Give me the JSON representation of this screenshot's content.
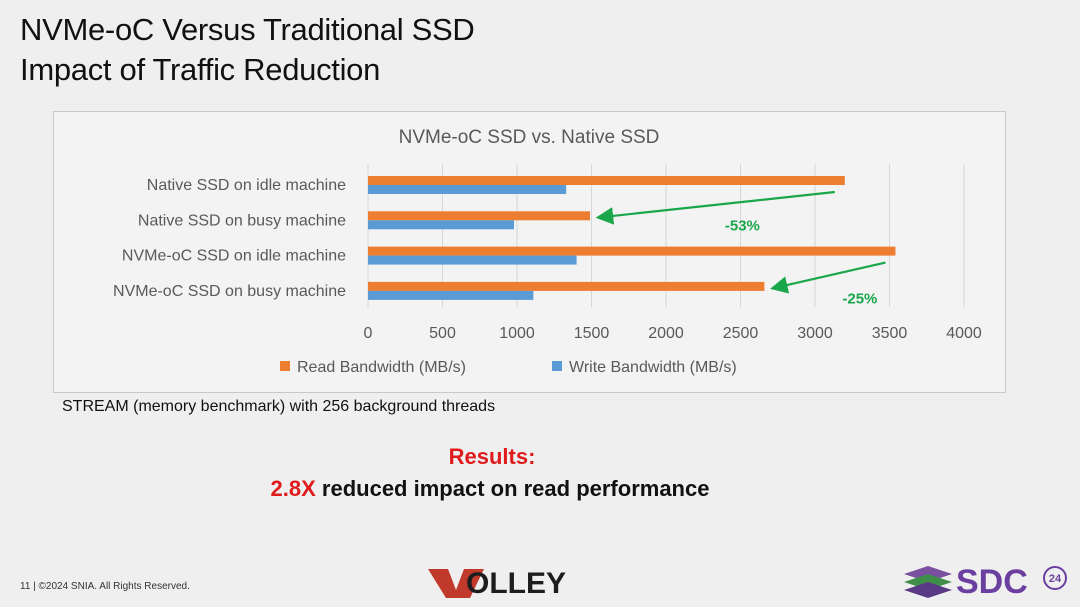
{
  "slide": {
    "title_line1": "NVMe-oC Versus Traditional SSD",
    "title_line2": "Impact of Traffic Reduction",
    "caption": "STREAM (memory benchmark) with 256 background threads",
    "results_title": "Results:",
    "results_highlight": "2.8X",
    "results_text": " reduced impact on read performance",
    "footer": "11 | ©2024 SNIA. All Rights Reserved.",
    "logo_left": "WOLLEY",
    "logo_right": "SDC",
    "logo_right_badge": "24"
  },
  "chart_data": {
    "type": "bar",
    "orientation": "horizontal",
    "title": "NVMe-oC SSD vs. Native SSD",
    "categories": [
      "Native SSD on idle machine",
      "Native SSD on busy machine",
      "NVMe-oC SSD on idle machine",
      "NVMe-oC SSD on busy machine"
    ],
    "series": [
      {
        "name": "Read Bandwidth (MB/s)",
        "color": "#ed7d31",
        "values": [
          3200,
          1490,
          3540,
          2660
        ]
      },
      {
        "name": "Write Bandwidth (MB/s)",
        "color": "#5b9bd5",
        "values": [
          1330,
          980,
          1400,
          1110
        ]
      }
    ],
    "xlim": [
      0,
      4000
    ],
    "xticks": [
      0,
      500,
      1000,
      1500,
      2000,
      2500,
      3000,
      3500,
      4000
    ],
    "grid": true,
    "legend_position": "bottom",
    "annotations": [
      {
        "text": "-53%",
        "color": "#1aa64a",
        "from_category": "Native SSD on idle machine",
        "to_category": "Native SSD on busy machine"
      },
      {
        "text": "-25%",
        "color": "#1aa64a",
        "from_category": "NVMe-oC SSD on idle machine",
        "to_category": "NVMe-oC SSD on busy machine"
      }
    ]
  }
}
